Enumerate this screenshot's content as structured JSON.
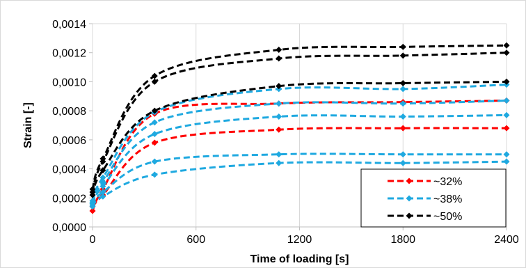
{
  "chart_data": {
    "type": "line",
    "xlabel": "Time of loading [s]",
    "ylabel": "Strain [-]",
    "xlim": [
      0,
      2400
    ],
    "ylim": [
      0,
      0.0014
    ],
    "x_ticks": [
      0,
      600,
      1200,
      1800,
      2400
    ],
    "x_tick_labels": [
      "0",
      "600",
      "1200",
      "1800",
      "2400"
    ],
    "y_ticks": [
      0,
      0.0002,
      0.0004,
      0.0006,
      0.0008,
      0.001,
      0.0012,
      0.0014
    ],
    "y_tick_labels": [
      "0,0000",
      "0,0002",
      "0,0004",
      "0,0006",
      "0,0008",
      "0,0010",
      "0,0012",
      "0,0014"
    ],
    "grid": "vertical",
    "legend_position": "bottom-right",
    "groups": [
      {
        "name": "~32%",
        "color": "#ff0000",
        "series": [
          {
            "x": [
              0,
              60,
              360,
              1080,
              1800,
              2400
            ],
            "y": [
              0.00011,
              0.00026,
              0.00078,
              0.00085,
              0.00086,
              0.00087
            ]
          },
          {
            "x": [
              0,
              60,
              360,
              1080,
              1800,
              2400
            ],
            "y": [
              0.00014,
              0.00022,
              0.00058,
              0.00067,
              0.00068,
              0.00068
            ]
          }
        ]
      },
      {
        "name": "~38%",
        "color": "#1fa9e0",
        "series": [
          {
            "x": [
              0,
              60,
              360,
              1080,
              1800,
              2400
            ],
            "y": [
              0.00018,
              0.00034,
              0.00079,
              0.00095,
              0.00095,
              0.00098
            ]
          },
          {
            "x": [
              0,
              60,
              360,
              1080,
              1800,
              2400
            ],
            "y": [
              0.00017,
              0.00031,
              0.00072,
              0.00085,
              0.00085,
              0.00087
            ]
          },
          {
            "x": [
              0,
              60,
              360,
              1080,
              1800,
              2400
            ],
            "y": [
              0.00016,
              0.00028,
              0.00064,
              0.00076,
              0.00076,
              0.00077
            ]
          },
          {
            "x": [
              0,
              60,
              360,
              1080,
              1800,
              2400
            ],
            "y": [
              0.00015,
              0.00024,
              0.00045,
              0.0005,
              0.0005,
              0.0005
            ]
          },
          {
            "x": [
              0,
              60,
              360,
              1080,
              1800,
              2400
            ],
            "y": [
              0.00014,
              0.00021,
              0.00036,
              0.00044,
              0.00044,
              0.00045
            ]
          }
        ]
      },
      {
        "name": "~50%",
        "color": "#000000",
        "series": [
          {
            "x": [
              0,
              60,
              360,
              1080,
              1800,
              2400
            ],
            "y": [
              0.00026,
              0.00047,
              0.00104,
              0.00122,
              0.00124,
              0.00125
            ]
          },
          {
            "x": [
              0,
              60,
              360,
              1080,
              1800,
              2400
            ],
            "y": [
              0.00024,
              0.00045,
              0.001,
              0.00116,
              0.00118,
              0.0012
            ]
          },
          {
            "x": [
              0,
              60,
              360,
              1080,
              1800,
              2400
            ],
            "y": [
              0.00022,
              0.00039,
              0.0008,
              0.00097,
              0.00099,
              0.001
            ]
          }
        ]
      }
    ]
  }
}
